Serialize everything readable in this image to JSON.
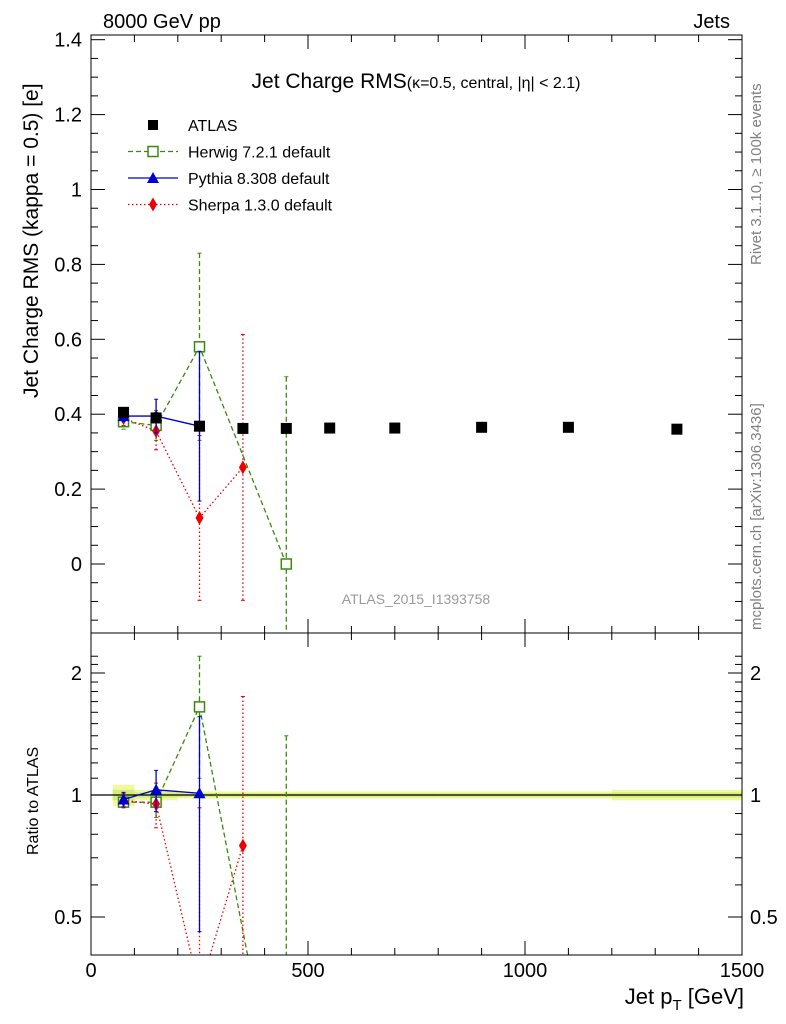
{
  "header": {
    "left": "8000 GeV pp",
    "right": "Jets"
  },
  "side": {
    "rivet": "Rivet 3.1.10, ≥ 100k events",
    "mcplots": "mcplots.cern.ch [arXiv:1306.3436]"
  },
  "chart_data": {
    "type": "scatter",
    "title": "Jet Charge RMS",
    "title_suffix": "(κ=0.5, central, |η| < 2.1)",
    "analysis_label": "ATLAS_2015_I1393758",
    "xlabel": "Jet p_T [GeV]",
    "ylabel": "Jet Charge RMS (kappa = 0.5) [e]",
    "ratio_ylabel": "Ratio to ATLAS",
    "xlim": [
      0,
      1500
    ],
    "ylim": [
      -0.15,
      1.42
    ],
    "ratio_ylim": [
      0.42,
      2.3
    ],
    "x_ticks": [
      0,
      500,
      1000,
      1500
    ],
    "y_ticks": [
      0,
      0.2,
      0.4,
      0.6,
      0.8,
      1,
      1.2,
      1.4
    ],
    "ratio_ticks": [
      0.5,
      1,
      2
    ],
    "legend_position": "top-left",
    "series": [
      {
        "name": "ATLAS",
        "color": "#000000",
        "marker": "square-filled",
        "line": "none",
        "x": [
          75,
          150,
          250,
          350,
          450,
          550,
          700,
          900,
          1100,
          1350
        ],
        "y": [
          0.405,
          0.39,
          0.368,
          0.362,
          0.362,
          0.363,
          0.363,
          0.365,
          0.365,
          0.36
        ],
        "ratio_band_half_widths": [
          0.06,
          0.03,
          0.02,
          0.02,
          0.02,
          0.02,
          0.02,
          0.02,
          0.02,
          0.03
        ]
      },
      {
        "name": "Herwig 7.2.1 default",
        "color": "#3a8a10",
        "marker": "square-open",
        "line": "dashed",
        "x": [
          75,
          150,
          250,
          450
        ],
        "y": [
          0.38,
          0.37,
          0.58,
          0.0
        ],
        "yerr": [
          0.02,
          0.04,
          0.25,
          0.5
        ],
        "ratio": [
          0.96,
          0.96,
          1.65,
          0.0
        ],
        "ratio_err": [
          0.03,
          0.08,
          0.55,
          1.4
        ]
      },
      {
        "name": "Pythia 8.308 default",
        "color": "#0000cc",
        "marker": "triangle-filled",
        "line": "solid",
        "x": [
          75,
          150,
          250
        ],
        "y": [
          0.395,
          0.395,
          0.368
        ],
        "yerr": [
          0.015,
          0.045,
          0.2
        ],
        "ratio": [
          0.975,
          1.03,
          1.01
        ],
        "ratio_err": [
          0.04,
          0.12,
          0.55
        ]
      },
      {
        "name": "Sherpa 1.3.0 default",
        "color": "#ee0000",
        "marker": "diamond-filled",
        "line": "dotted",
        "x": [
          75,
          150,
          250,
          350
        ],
        "y": [
          0.39,
          0.355,
          0.123,
          0.258
        ],
        "yerr": [
          0.02,
          0.05,
          0.22,
          0.355
        ],
        "ratio": [
          0.97,
          0.95,
          0.33,
          0.75
        ],
        "ratio_err": [
          0.04,
          0.12,
          0.6,
          1.0
        ]
      }
    ]
  }
}
